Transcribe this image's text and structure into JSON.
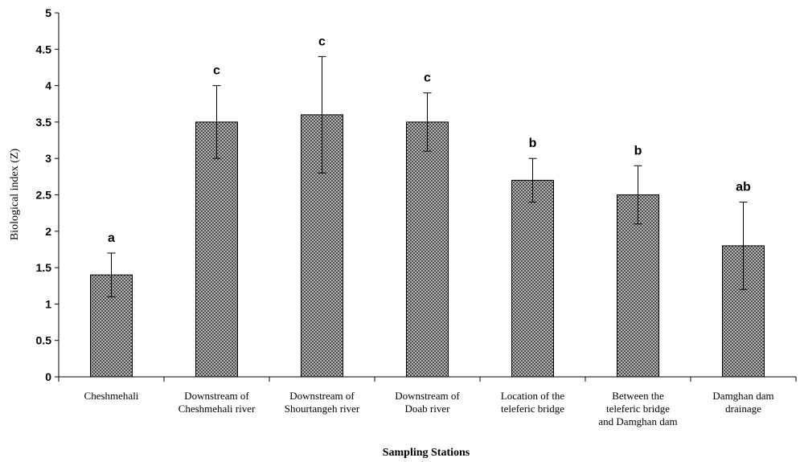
{
  "chart_data": {
    "type": "bar",
    "title": "",
    "xlabel": "Sampling Stations",
    "ylabel": "Biological index (Z)",
    "ylim": [
      0,
      5
    ],
    "yticks": [
      "0",
      "0.5",
      "1",
      "1.5",
      "2",
      "2.5",
      "3",
      "3.5",
      "4",
      "4.5",
      "5"
    ],
    "grid": false,
    "bar_fill": "crosshatch-gray",
    "categories": [
      [
        "Cheshmehali"
      ],
      [
        "Downstream of",
        "Cheshmehali river"
      ],
      [
        "Downstream of",
        "Shourtangeh river"
      ],
      [
        "Downstream of",
        "Doab river"
      ],
      [
        "Location of the",
        "teleferic bridge"
      ],
      [
        "Between the",
        "teleferic bridge",
        "and Damghan dam"
      ],
      [
        "Damghan dam",
        "drainage"
      ]
    ],
    "values": [
      1.4,
      3.5,
      3.6,
      3.5,
      2.7,
      2.5,
      1.8
    ],
    "error_upper": [
      1.7,
      4.0,
      4.4,
      3.9,
      3.0,
      2.9,
      2.4
    ],
    "error_lower": [
      1.1,
      3.0,
      2.8,
      3.1,
      2.4,
      2.1,
      1.2
    ],
    "significance_labels": [
      "a",
      "c",
      "c",
      "c",
      "b",
      "b",
      "ab"
    ]
  }
}
